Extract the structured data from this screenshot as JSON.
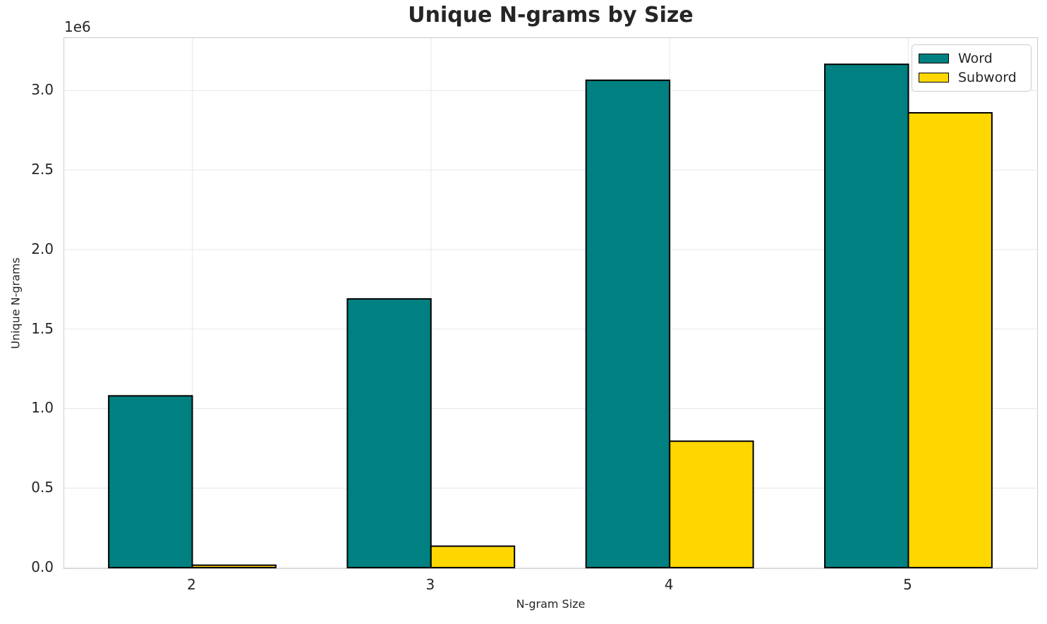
{
  "figure": {
    "background": "#ffffff",
    "text_color": "#262626",
    "grid_color": "#eaeaea",
    "spine_color": "#cccccc",
    "bar_edge_color": "#000000"
  },
  "chart_data": {
    "type": "bar",
    "title": "Unique N-grams by Size",
    "xlabel": "N-gram Size",
    "ylabel": "Unique N-grams",
    "y_offset_label": "1e6",
    "categories": [
      "2",
      "3",
      "4",
      "5"
    ],
    "series": [
      {
        "name": "Word",
        "color": "#008080",
        "values": [
          1080000,
          1690000,
          3065000,
          3165000
        ]
      },
      {
        "name": "Subword",
        "color": "#FFD700",
        "values": [
          15000,
          135000,
          795000,
          2860000
        ]
      }
    ],
    "ylim": [
      0,
      3330000
    ],
    "yticks": [
      0,
      500000,
      1000000,
      1500000,
      2000000,
      2500000,
      3000000
    ],
    "ytick_labels": [
      "0.0",
      "0.5",
      "1.0",
      "1.5",
      "2.0",
      "2.5",
      "3.0"
    ],
    "grid": true,
    "legend_position": "upper right"
  }
}
